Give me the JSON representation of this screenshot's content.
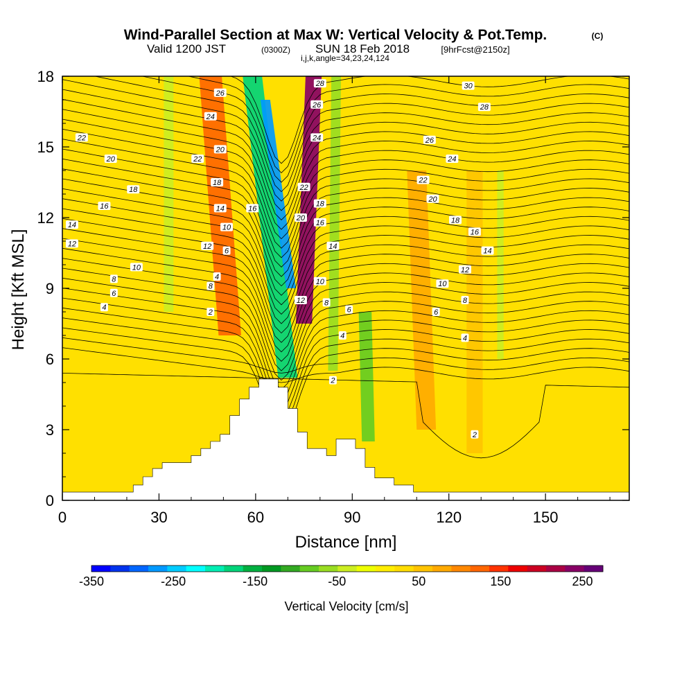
{
  "header": {
    "title": "Wind-Parallel Section at Max W: Vertical Velocity & Pot.Temp.",
    "copyright": "(C)",
    "valid_prefix": "Valid 1200 JST",
    "valid_utc": "(0300Z)",
    "valid_date": "SUN 18 Feb 2018",
    "forecast": "[9hrFcst@2150z]",
    "indices": "i,j,k,angle=34,23,24,124"
  },
  "chart_data": {
    "type": "heatmap",
    "xlabel": "Distance [nm]",
    "ylabel": "Height [Kft MSL]",
    "xlim": [
      0,
      176
    ],
    "ylim": [
      0,
      18
    ],
    "x_ticks": [
      0,
      30,
      60,
      90,
      120,
      150
    ],
    "y_ticks": [
      0,
      3,
      6,
      9,
      12,
      15,
      18
    ],
    "background_fill_range": "0 to 50 cm/s",
    "vertical_velocity_bands": [
      {
        "x_center": 33,
        "x_bottom": 33,
        "x_top": 33,
        "width": 3,
        "value": -40,
        "y_from": 8,
        "y_to": 18
      },
      {
        "x_center": 45,
        "x_bottom": 52,
        "x_top": 46,
        "width": 7,
        "value": 130,
        "y_from": 7,
        "y_to": 18
      },
      {
        "x_center": 62,
        "x_bottom": 70,
        "x_top": 59,
        "width": 6,
        "value": -170,
        "y_from": 5.2,
        "y_to": 18
      },
      {
        "x_center": 64,
        "x_bottom": 71,
        "x_top": 63,
        "width": 3,
        "value": -260,
        "y_from": 9,
        "y_to": 17
      },
      {
        "x_center": 77,
        "x_bottom": 75,
        "x_top": 78,
        "width": 5,
        "value": 250,
        "y_from": 7.5,
        "y_to": 18
      },
      {
        "x_center": 84,
        "x_bottom": 84,
        "x_top": 85,
        "width": 3,
        "value": -60,
        "y_from": 5.5,
        "y_to": 18
      },
      {
        "x_center": 94,
        "x_bottom": 95,
        "x_top": 94,
        "width": 4,
        "value": -80,
        "y_from": 2.5,
        "y_to": 8
      },
      {
        "x_center": 113,
        "x_bottom": 113,
        "x_top": 110,
        "width": 6,
        "value": 70,
        "y_from": 3,
        "y_to": 14
      },
      {
        "x_center": 128,
        "x_bottom": 128,
        "x_top": 128,
        "width": 5,
        "value": 60,
        "y_from": 2,
        "y_to": 14
      },
      {
        "x_center": 136,
        "x_bottom": 136,
        "x_top": 136,
        "width": 2,
        "value": -30,
        "y_from": 6,
        "y_to": 14
      }
    ],
    "terrain": [
      [
        0,
        0.35
      ],
      [
        22,
        0.35
      ],
      [
        22,
        0.65
      ],
      [
        25,
        0.65
      ],
      [
        25,
        1.0
      ],
      [
        28,
        1.0
      ],
      [
        28,
        1.35
      ],
      [
        31,
        1.35
      ],
      [
        31,
        1.6
      ],
      [
        40,
        1.6
      ],
      [
        40,
        1.9
      ],
      [
        43,
        1.9
      ],
      [
        43,
        2.2
      ],
      [
        46,
        2.2
      ],
      [
        46,
        2.5
      ],
      [
        49,
        2.5
      ],
      [
        49,
        2.8
      ],
      [
        52,
        2.8
      ],
      [
        52,
        3.6
      ],
      [
        55,
        3.6
      ],
      [
        55,
        4.3
      ],
      [
        58,
        4.3
      ],
      [
        58,
        4.8
      ],
      [
        61,
        4.8
      ],
      [
        61,
        5.15
      ],
      [
        67,
        5.15
      ],
      [
        67,
        4.8
      ],
      [
        70,
        4.8
      ],
      [
        70,
        3.9
      ],
      [
        73,
        3.9
      ],
      [
        73,
        2.9
      ],
      [
        76,
        2.9
      ],
      [
        76,
        2.2
      ],
      [
        82,
        2.2
      ],
      [
        82,
        1.9
      ],
      [
        85,
        1.9
      ],
      [
        85,
        2.6
      ],
      [
        91,
        2.6
      ],
      [
        91,
        2.2
      ],
      [
        94,
        2.2
      ],
      [
        94,
        1.4
      ],
      [
        97,
        1.4
      ],
      [
        97,
        0.95
      ],
      [
        103,
        0.95
      ],
      [
        103,
        0.65
      ],
      [
        109,
        0.65
      ],
      [
        109,
        0.35
      ],
      [
        176,
        0.35
      ]
    ],
    "theta_contours": {
      "levels": [
        4,
        6,
        8,
        10,
        12,
        14,
        16,
        18,
        20,
        22,
        24,
        26,
        28,
        30
      ],
      "label_points": [
        {
          "x": 13,
          "y": 8.2,
          "v": "4"
        },
        {
          "x": 16,
          "y": 8.8,
          "v": "6"
        },
        {
          "x": 16,
          "y": 9.4,
          "v": "8"
        },
        {
          "x": 23,
          "y": 9.9,
          "v": "10"
        },
        {
          "x": 3,
          "y": 10.9,
          "v": "12"
        },
        {
          "x": 3,
          "y": 11.7,
          "v": "14"
        },
        {
          "x": 13,
          "y": 12.5,
          "v": "16"
        },
        {
          "x": 22,
          "y": 13.2,
          "v": "18"
        },
        {
          "x": 15,
          "y": 14.5,
          "v": "20"
        },
        {
          "x": 6,
          "y": 15.4,
          "v": "22"
        },
        {
          "x": 46,
          "y": 8.0,
          "v": "2"
        },
        {
          "x": 46,
          "y": 9.1,
          "v": "8"
        },
        {
          "x": 48,
          "y": 9.5,
          "v": "4"
        },
        {
          "x": 45,
          "y": 10.8,
          "v": "12"
        },
        {
          "x": 51,
          "y": 10.6,
          "v": "6"
        },
        {
          "x": 51,
          "y": 11.6,
          "v": "10"
        },
        {
          "x": 49,
          "y": 12.4,
          "v": "14"
        },
        {
          "x": 48,
          "y": 13.5,
          "v": "18"
        },
        {
          "x": 42,
          "y": 14.5,
          "v": "22"
        },
        {
          "x": 49,
          "y": 14.9,
          "v": "20"
        },
        {
          "x": 46,
          "y": 16.3,
          "v": "24"
        },
        {
          "x": 49,
          "y": 17.3,
          "v": "26"
        },
        {
          "x": 59,
          "y": 12.4,
          "v": "16"
        },
        {
          "x": 75,
          "y": 13.3,
          "v": "22"
        },
        {
          "x": 74,
          "y": 12.0,
          "v": "20"
        },
        {
          "x": 80,
          "y": 12.6,
          "v": "18"
        },
        {
          "x": 80,
          "y": 11.8,
          "v": "16"
        },
        {
          "x": 79,
          "y": 15.4,
          "v": "24"
        },
        {
          "x": 79,
          "y": 16.8,
          "v": "26"
        },
        {
          "x": 80,
          "y": 17.7,
          "v": "28"
        },
        {
          "x": 84,
          "y": 10.8,
          "v": "14"
        },
        {
          "x": 80,
          "y": 9.3,
          "v": "10"
        },
        {
          "x": 82,
          "y": 8.4,
          "v": "8"
        },
        {
          "x": 74,
          "y": 8.5,
          "v": "12"
        },
        {
          "x": 89,
          "y": 8.1,
          "v": "6"
        },
        {
          "x": 87,
          "y": 7.0,
          "v": "4"
        },
        {
          "x": 84,
          "y": 5.1,
          "v": "2"
        },
        {
          "x": 114,
          "y": 15.3,
          "v": "26"
        },
        {
          "x": 121,
          "y": 14.5,
          "v": "24"
        },
        {
          "x": 112,
          "y": 13.6,
          "v": "22"
        },
        {
          "x": 115,
          "y": 12.8,
          "v": "20"
        },
        {
          "x": 122,
          "y": 11.9,
          "v": "18"
        },
        {
          "x": 128,
          "y": 11.4,
          "v": "16"
        },
        {
          "x": 132,
          "y": 10.6,
          "v": "14"
        },
        {
          "x": 125,
          "y": 9.8,
          "v": "12"
        },
        {
          "x": 118,
          "y": 9.2,
          "v": "10"
        },
        {
          "x": 125,
          "y": 8.5,
          "v": "8"
        },
        {
          "x": 116,
          "y": 8.0,
          "v": "6"
        },
        {
          "x": 125,
          "y": 6.9,
          "v": "4"
        },
        {
          "x": 128,
          "y": 2.8,
          "v": "2"
        },
        {
          "x": 126,
          "y": 17.6,
          "v": "30"
        },
        {
          "x": 131,
          "y": 16.7,
          "v": "28"
        }
      ]
    },
    "colorbar": {
      "label": "Vertical Velocity [cm/s]",
      "tick_labels": [
        "-350",
        "-250",
        "-150",
        "-50",
        "50",
        "150",
        "250"
      ],
      "tick_values": [
        -350,
        -250,
        -150,
        -50,
        50,
        150,
        250
      ],
      "min": -350,
      "max": 275,
      "colors": [
        "#0000ff",
        "#0033ee",
        "#0066ff",
        "#0099ff",
        "#00ccff",
        "#00ffff",
        "#00eeb3",
        "#00d47a",
        "#00b040",
        "#009922",
        "#33aa22",
        "#66cc22",
        "#99dd22",
        "#ccee22",
        "#eeff00",
        "#ffee00",
        "#ffdd00",
        "#ffc400",
        "#ffaa00",
        "#ff8800",
        "#ff6600",
        "#ff3300",
        "#ee0000",
        "#cc0022",
        "#aa0044",
        "#880066",
        "#660077"
      ]
    }
  }
}
